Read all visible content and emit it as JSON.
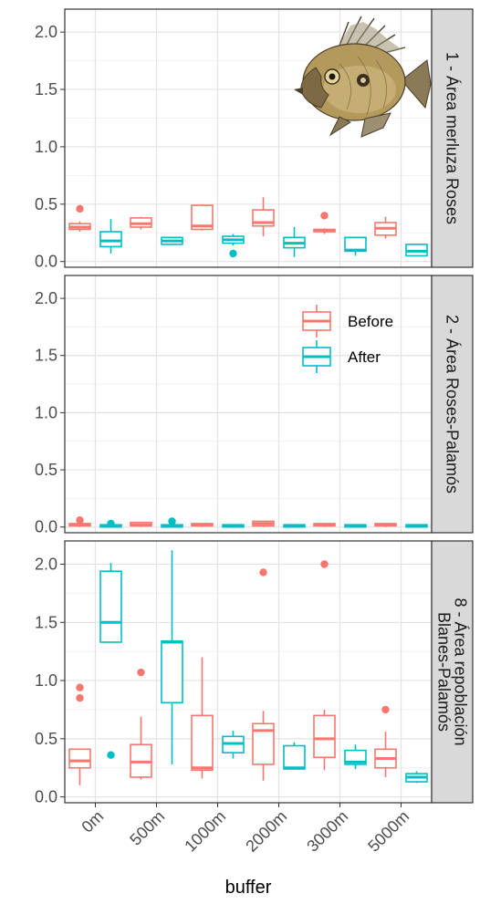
{
  "chart_data": {
    "type": "boxplot",
    "xlabel": "buffer",
    "ylabel": "",
    "categories": [
      "0m",
      "500m",
      "1000m",
      "2000m",
      "3000m",
      "5000m"
    ],
    "yticks": [
      "0.0",
      "0.5",
      "1.0",
      "1.5",
      "2.0"
    ],
    "ylim": [
      -0.05,
      2.2
    ],
    "grid": true,
    "legend": {
      "position": "inside panel 2, top-right",
      "entries": [
        {
          "label": "Before",
          "color": "#F8766D"
        },
        {
          "label": "After",
          "color": "#00BFC4"
        }
      ]
    },
    "panels": [
      {
        "strip_lines": [
          "1 - Área merluza Roses"
        ],
        "has_fish_image": true,
        "series": [
          {
            "name": "Before",
            "color": "#F8766D",
            "boxes": [
              {
                "q1": 0.28,
                "median": 0.3,
                "q3": 0.33,
                "lower": 0.26,
                "upper": 0.35,
                "outliers": [
                  0.46
                ]
              },
              {
                "q1": 0.3,
                "median": 0.33,
                "q3": 0.38,
                "lower": 0.28,
                "upper": 0.39,
                "outliers": []
              },
              {
                "q1": 0.28,
                "median": 0.31,
                "q3": 0.49,
                "lower": 0.27,
                "upper": 0.5,
                "outliers": []
              },
              {
                "q1": 0.31,
                "median": 0.34,
                "q3": 0.45,
                "lower": 0.22,
                "upper": 0.56,
                "outliers": []
              },
              {
                "q1": 0.26,
                "median": 0.27,
                "q3": 0.28,
                "lower": 0.24,
                "upper": 0.29,
                "outliers": [
                  0.4
                ]
              },
              {
                "q1": 0.23,
                "median": 0.29,
                "q3": 0.34,
                "lower": 0.2,
                "upper": 0.39,
                "outliers": []
              }
            ]
          },
          {
            "name": "After",
            "color": "#00BFC4",
            "boxes": [
              {
                "q1": 0.13,
                "median": 0.18,
                "q3": 0.26,
                "lower": 0.07,
                "upper": 0.37,
                "outliers": []
              },
              {
                "q1": 0.15,
                "median": 0.18,
                "q3": 0.21,
                "lower": 0.15,
                "upper": 0.21,
                "outliers": []
              },
              {
                "q1": 0.16,
                "median": 0.19,
                "q3": 0.22,
                "lower": 0.14,
                "upper": 0.24,
                "outliers": [
                  0.07
                ]
              },
              {
                "q1": 0.12,
                "median": 0.16,
                "q3": 0.21,
                "lower": 0.04,
                "upper": 0.3,
                "outliers": []
              },
              {
                "q1": 0.09,
                "median": 0.1,
                "q3": 0.21,
                "lower": 0.05,
                "upper": 0.21,
                "outliers": []
              },
              {
                "q1": 0.05,
                "median": 0.09,
                "q3": 0.15,
                "lower": 0.05,
                "upper": 0.15,
                "outliers": []
              }
            ]
          }
        ]
      },
      {
        "strip_lines": [
          "2 - Área Roses-Palamós"
        ],
        "has_fish_image": false,
        "series": [
          {
            "name": "Before",
            "color": "#F8766D",
            "boxes": [
              {
                "q1": 0.01,
                "median": 0.02,
                "q3": 0.03,
                "lower": 0.0,
                "upper": 0.05,
                "outliers": [
                  0.06
                ]
              },
              {
                "q1": 0.01,
                "median": 0.02,
                "q3": 0.04,
                "lower": 0.0,
                "upper": 0.04,
                "outliers": []
              },
              {
                "q1": 0.01,
                "median": 0.02,
                "q3": 0.03,
                "lower": 0.0,
                "upper": 0.03,
                "outliers": []
              },
              {
                "q1": 0.01,
                "median": 0.03,
                "q3": 0.05,
                "lower": 0.0,
                "upper": 0.05,
                "outliers": []
              },
              {
                "q1": 0.01,
                "median": 0.02,
                "q3": 0.03,
                "lower": 0.0,
                "upper": 0.03,
                "outliers": []
              },
              {
                "q1": 0.01,
                "median": 0.02,
                "q3": 0.03,
                "lower": 0.0,
                "upper": 0.03,
                "outliers": []
              }
            ]
          },
          {
            "name": "After",
            "color": "#00BFC4",
            "boxes": [
              {
                "q1": 0.0,
                "median": 0.01,
                "q3": 0.02,
                "lower": 0.0,
                "upper": 0.02,
                "outliers": [
                  0.03
                ]
              },
              {
                "q1": 0.0,
                "median": 0.01,
                "q3": 0.02,
                "lower": 0.0,
                "upper": 0.02,
                "outliers": [
                  0.05
                ]
              },
              {
                "q1": 0.0,
                "median": 0.01,
                "q3": 0.02,
                "lower": 0.0,
                "upper": 0.02,
                "outliers": []
              },
              {
                "q1": 0.0,
                "median": 0.01,
                "q3": 0.02,
                "lower": 0.0,
                "upper": 0.02,
                "outliers": []
              },
              {
                "q1": 0.0,
                "median": 0.01,
                "q3": 0.02,
                "lower": 0.0,
                "upper": 0.02,
                "outliers": []
              },
              {
                "q1": 0.0,
                "median": 0.01,
                "q3": 0.02,
                "lower": 0.0,
                "upper": 0.02,
                "outliers": []
              }
            ]
          }
        ]
      },
      {
        "strip_lines": [
          "8 - Área repoblación",
          "Blanes-Palamós"
        ],
        "has_fish_image": false,
        "series": [
          {
            "name": "Before",
            "color": "#F8766D",
            "boxes": [
              {
                "q1": 0.25,
                "median": 0.31,
                "q3": 0.41,
                "lower": 0.1,
                "upper": 0.41,
                "outliers": [
                  0.94,
                  0.85
                ]
              },
              {
                "q1": 0.17,
                "median": 0.3,
                "q3": 0.45,
                "lower": 0.15,
                "upper": 0.69,
                "outliers": [
                  1.07
                ]
              },
              {
                "q1": 0.23,
                "median": 0.25,
                "q3": 0.7,
                "lower": 0.16,
                "upper": 1.2,
                "outliers": []
              },
              {
                "q1": 0.28,
                "median": 0.57,
                "q3": 0.63,
                "lower": 0.14,
                "upper": 0.74,
                "outliers": [
                  1.93
                ]
              },
              {
                "q1": 0.34,
                "median": 0.5,
                "q3": 0.7,
                "lower": 0.23,
                "upper": 0.75,
                "outliers": [
                  2.0
                ]
              },
              {
                "q1": 0.25,
                "median": 0.33,
                "q3": 0.41,
                "lower": 0.17,
                "upper": 0.56,
                "outliers": [
                  0.75
                ]
              }
            ]
          },
          {
            "name": "After",
            "color": "#00BFC4",
            "boxes": [
              {
                "q1": 1.33,
                "median": 1.5,
                "q3": 1.94,
                "lower": 1.33,
                "upper": 2.01,
                "outliers": [
                  0.36
                ]
              },
              {
                "q1": 0.81,
                "median": 1.33,
                "q3": 1.34,
                "lower": 0.28,
                "upper": 2.12,
                "outliers": []
              },
              {
                "q1": 0.38,
                "median": 0.46,
                "q3": 0.52,
                "lower": 0.33,
                "upper": 0.57,
                "outliers": []
              },
              {
                "q1": 0.24,
                "median": 0.25,
                "q3": 0.44,
                "lower": 0.24,
                "upper": 0.47,
                "outliers": []
              },
              {
                "q1": 0.28,
                "median": 0.3,
                "q3": 0.4,
                "lower": 0.24,
                "upper": 0.45,
                "outliers": []
              },
              {
                "q1": 0.13,
                "median": 0.17,
                "q3": 0.2,
                "lower": 0.12,
                "upper": 0.22,
                "outliers": []
              }
            ]
          }
        ]
      }
    ]
  }
}
